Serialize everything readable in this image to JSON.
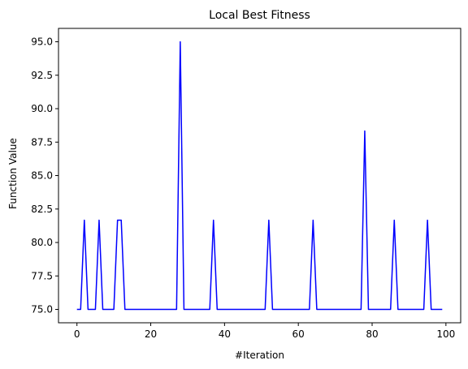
{
  "chart_data": {
    "type": "line",
    "title": "Local Best Fitness",
    "xlabel": "#Iteration",
    "ylabel": "Function Value",
    "xlim": [
      -5,
      104
    ],
    "ylim": [
      74,
      96
    ],
    "xticks": [
      0,
      20,
      40,
      60,
      80,
      100
    ],
    "xtick_labels": [
      "0",
      "20",
      "40",
      "60",
      "80",
      "100"
    ],
    "yticks": [
      75.0,
      77.5,
      80.0,
      82.5,
      85.0,
      87.5,
      90.0,
      92.5,
      95.0
    ],
    "ytick_labels": [
      "75.0",
      "77.5",
      "80.0",
      "82.5",
      "85.0",
      "87.5",
      "90.0",
      "92.5",
      "95.0"
    ],
    "grid": false,
    "series": [
      {
        "color": "#0000ff",
        "x": [
          0,
          1,
          2,
          3,
          4,
          5,
          6,
          7,
          8,
          9,
          10,
          11,
          12,
          13,
          14,
          15,
          16,
          17,
          18,
          19,
          20,
          21,
          22,
          23,
          24,
          25,
          26,
          27,
          28,
          29,
          30,
          31,
          32,
          33,
          34,
          35,
          36,
          37,
          38,
          39,
          40,
          41,
          42,
          43,
          44,
          45,
          46,
          47,
          48,
          49,
          50,
          51,
          52,
          53,
          54,
          55,
          56,
          57,
          58,
          59,
          60,
          61,
          62,
          63,
          64,
          65,
          66,
          67,
          68,
          69,
          70,
          71,
          72,
          73,
          74,
          75,
          76,
          77,
          78,
          79,
          80,
          81,
          82,
          83,
          84,
          85,
          86,
          87,
          88,
          89,
          90,
          91,
          92,
          93,
          94,
          95,
          96,
          97,
          98,
          99
        ],
        "values": [
          75,
          75,
          81.67,
          75,
          75,
          75,
          81.67,
          75,
          75,
          75,
          75,
          81.67,
          81.67,
          75,
          75,
          75,
          75,
          75,
          75,
          75,
          75,
          75,
          75,
          75,
          75,
          75,
          75,
          75,
          95,
          75,
          75,
          75,
          75,
          75,
          75,
          75,
          75,
          81.67,
          75,
          75,
          75,
          75,
          75,
          75,
          75,
          75,
          75,
          75,
          75,
          75,
          75,
          75,
          81.67,
          75,
          75,
          75,
          75,
          75,
          75,
          75,
          75,
          75,
          75,
          75,
          81.67,
          75,
          75,
          75,
          75,
          75,
          75,
          75,
          75,
          75,
          75,
          75,
          75,
          75,
          88.33,
          75,
          75,
          75,
          75,
          75,
          75,
          75,
          81.67,
          75,
          75,
          75,
          75,
          75,
          75,
          75,
          75,
          81.67,
          75,
          75,
          75,
          75
        ]
      }
    ]
  }
}
